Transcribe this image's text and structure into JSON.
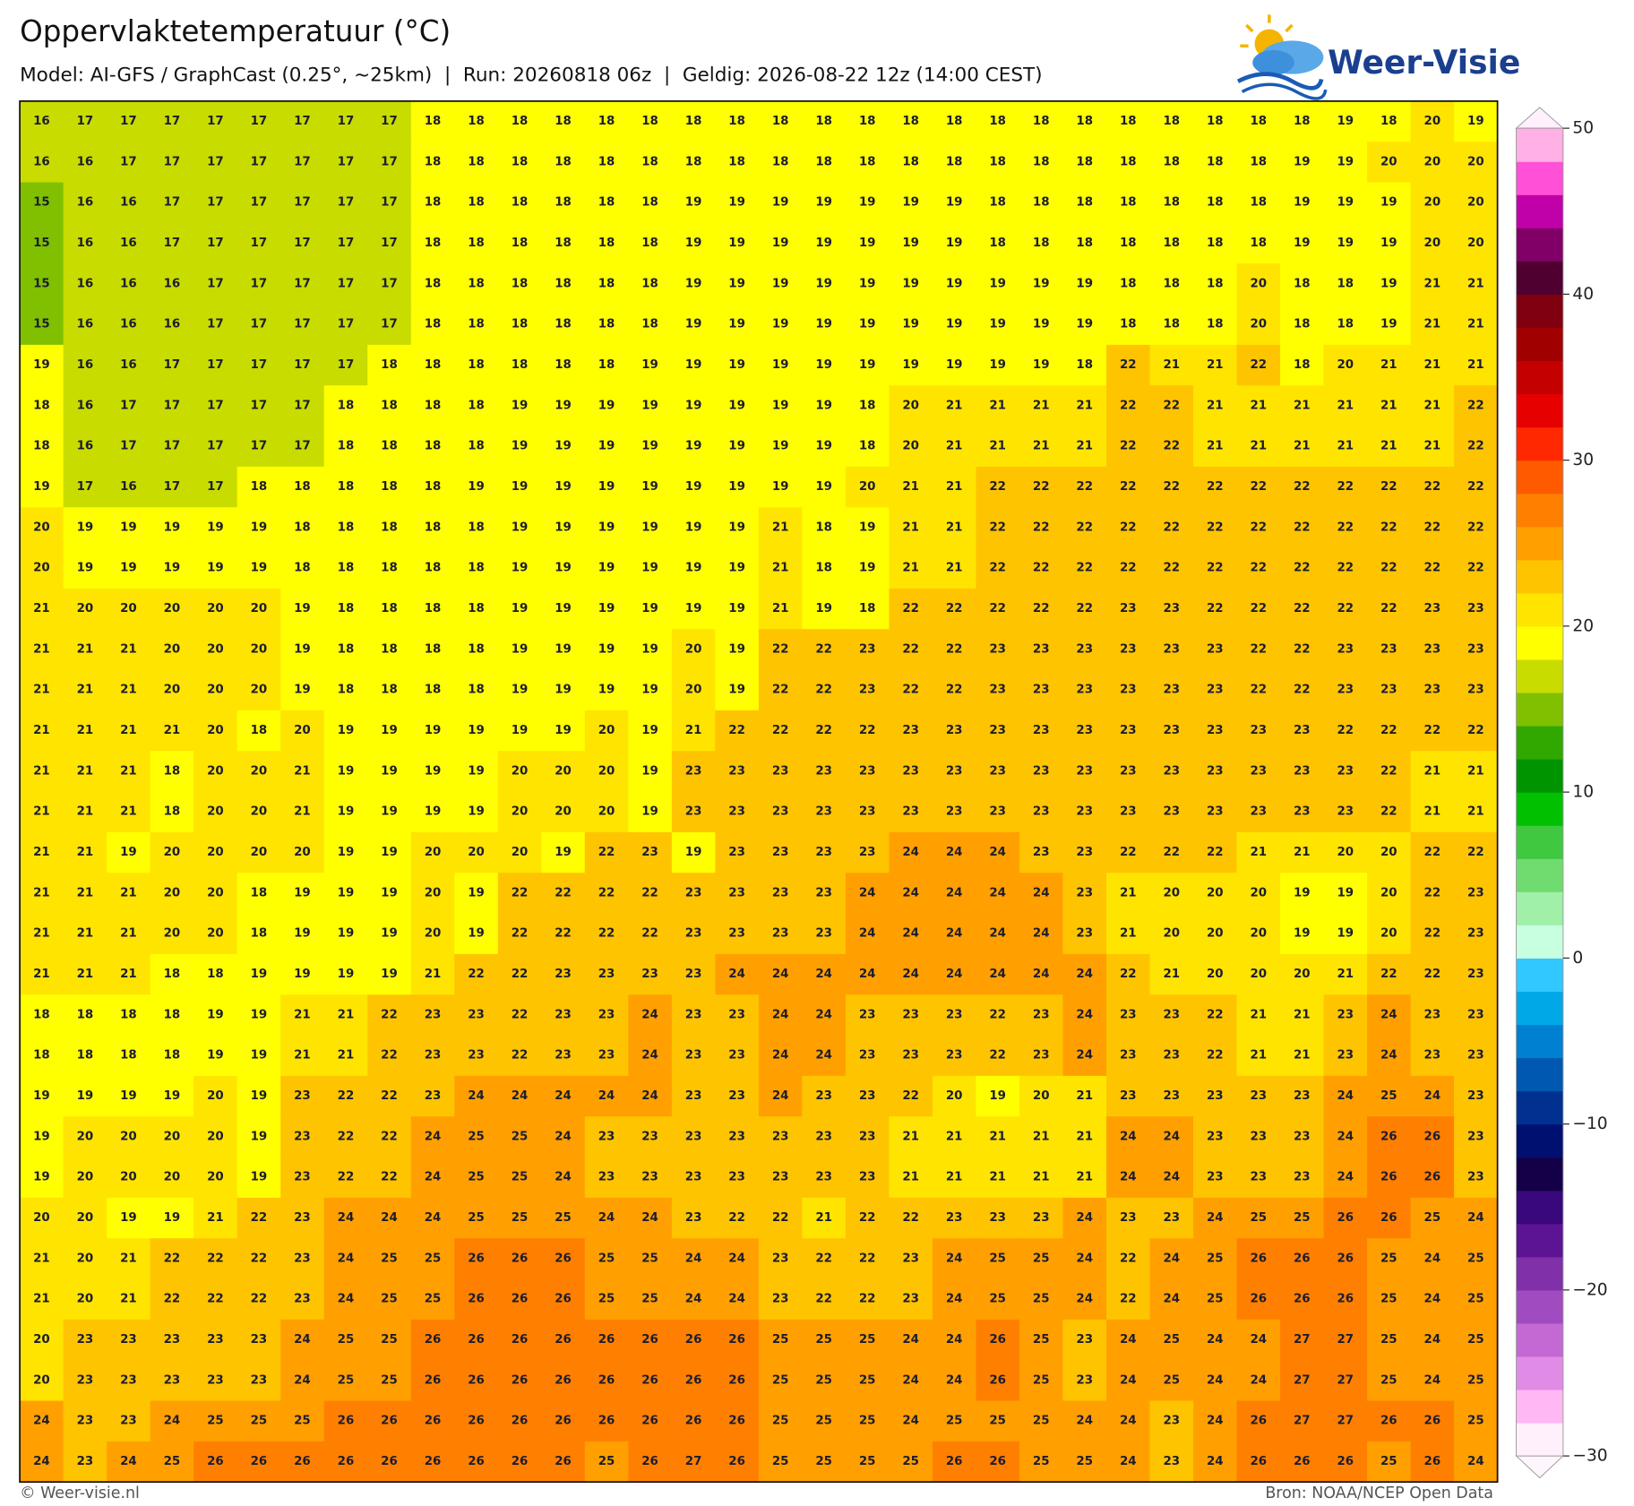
{
  "header": {
    "title": "Oppervlaktetemperatuur (°C)",
    "subtitle": "Model: AI-GFS / GraphCast (0.25°, ~25km)  |  Run: 20260818 06z  |  Geldig: 2026-08-22 12z (14:00 CEST)"
  },
  "logo": {
    "text": "Weer-Visie"
  },
  "map": {
    "rows": [
      [
        16,
        17,
        17,
        17,
        17,
        17,
        17,
        17,
        17,
        18,
        18,
        18,
        18,
        18,
        18,
        18,
        18,
        18,
        18,
        18,
        18,
        18,
        18,
        18,
        18,
        18,
        18,
        18,
        18,
        18,
        19,
        18,
        20,
        19
      ],
      [
        16,
        16,
        17,
        17,
        17,
        17,
        17,
        17,
        17,
        18,
        18,
        18,
        18,
        18,
        18,
        18,
        18,
        18,
        18,
        18,
        18,
        18,
        18,
        18,
        18,
        18,
        18,
        18,
        18,
        19,
        19,
        20,
        20,
        20
      ],
      [
        15,
        16,
        16,
        17,
        17,
        17,
        17,
        17,
        17,
        18,
        18,
        18,
        18,
        18,
        18,
        19,
        19,
        19,
        19,
        19,
        19,
        19,
        18,
        18,
        18,
        18,
        18,
        18,
        18,
        19,
        19,
        19,
        20,
        20
      ],
      [
        15,
        16,
        16,
        17,
        17,
        17,
        17,
        17,
        17,
        18,
        18,
        18,
        18,
        18,
        18,
        19,
        19,
        19,
        19,
        19,
        19,
        19,
        18,
        18,
        18,
        18,
        18,
        18,
        18,
        19,
        19,
        19,
        20,
        20
      ],
      [
        15,
        16,
        16,
        16,
        17,
        17,
        17,
        17,
        17,
        18,
        18,
        18,
        18,
        18,
        18,
        19,
        19,
        19,
        19,
        19,
        19,
        19,
        19,
        19,
        19,
        18,
        18,
        18,
        20,
        18,
        18,
        19,
        21,
        21
      ],
      [
        15,
        16,
        16,
        16,
        17,
        17,
        17,
        17,
        17,
        18,
        18,
        18,
        18,
        18,
        18,
        19,
        19,
        19,
        19,
        19,
        19,
        19,
        19,
        19,
        19,
        18,
        18,
        18,
        20,
        18,
        18,
        19,
        21,
        21
      ],
      [
        19,
        16,
        16,
        17,
        17,
        17,
        17,
        17,
        18,
        18,
        18,
        18,
        18,
        18,
        19,
        19,
        19,
        19,
        19,
        19,
        19,
        19,
        19,
        19,
        18,
        22,
        21,
        21,
        22,
        18,
        20,
        21,
        21,
        21
      ],
      [
        18,
        16,
        17,
        17,
        17,
        17,
        17,
        18,
        18,
        18,
        18,
        19,
        19,
        19,
        19,
        19,
        19,
        19,
        19,
        18,
        20,
        21,
        21,
        21,
        21,
        22,
        22,
        21,
        21,
        21,
        21,
        21,
        21,
        22
      ],
      [
        18,
        16,
        17,
        17,
        17,
        17,
        17,
        18,
        18,
        18,
        18,
        19,
        19,
        19,
        19,
        19,
        19,
        19,
        19,
        18,
        20,
        21,
        21,
        21,
        21,
        22,
        22,
        21,
        21,
        21,
        21,
        21,
        21,
        22
      ],
      [
        19,
        17,
        16,
        17,
        17,
        18,
        18,
        18,
        18,
        18,
        19,
        19,
        19,
        19,
        19,
        19,
        19,
        19,
        19,
        20,
        21,
        21,
        22,
        22,
        22,
        22,
        22,
        22,
        22,
        22,
        22,
        22,
        22,
        22
      ],
      [
        20,
        19,
        19,
        19,
        19,
        19,
        18,
        18,
        18,
        18,
        18,
        19,
        19,
        19,
        19,
        19,
        19,
        21,
        18,
        19,
        21,
        21,
        22,
        22,
        22,
        22,
        22,
        22,
        22,
        22,
        22,
        22,
        22,
        22
      ],
      [
        20,
        19,
        19,
        19,
        19,
        19,
        18,
        18,
        18,
        18,
        18,
        19,
        19,
        19,
        19,
        19,
        19,
        21,
        18,
        19,
        21,
        21,
        22,
        22,
        22,
        22,
        22,
        22,
        22,
        22,
        22,
        22,
        22,
        22
      ],
      [
        21,
        20,
        20,
        20,
        20,
        20,
        19,
        18,
        18,
        18,
        18,
        19,
        19,
        19,
        19,
        19,
        19,
        21,
        19,
        18,
        22,
        22,
        22,
        22,
        22,
        23,
        23,
        22,
        22,
        22,
        22,
        22,
        23,
        23
      ],
      [
        21,
        21,
        21,
        20,
        20,
        20,
        19,
        18,
        18,
        18,
        18,
        19,
        19,
        19,
        19,
        20,
        19,
        22,
        22,
        23,
        22,
        22,
        23,
        23,
        23,
        23,
        23,
        23,
        22,
        22,
        23,
        23,
        23,
        23
      ],
      [
        21,
        21,
        21,
        20,
        20,
        20,
        19,
        18,
        18,
        18,
        18,
        19,
        19,
        19,
        19,
        20,
        19,
        22,
        22,
        23,
        22,
        22,
        23,
        23,
        23,
        23,
        23,
        23,
        22,
        22,
        23,
        23,
        23,
        23
      ],
      [
        21,
        21,
        21,
        21,
        20,
        18,
        20,
        19,
        19,
        19,
        19,
        19,
        19,
        20,
        19,
        21,
        22,
        22,
        22,
        22,
        23,
        23,
        23,
        23,
        23,
        23,
        23,
        23,
        23,
        23,
        22,
        22,
        22,
        22
      ],
      [
        21,
        21,
        21,
        18,
        20,
        20,
        21,
        19,
        19,
        19,
        19,
        20,
        20,
        20,
        19,
        23,
        23,
        23,
        23,
        23,
        23,
        23,
        23,
        23,
        23,
        23,
        23,
        23,
        23,
        23,
        23,
        22,
        21,
        21
      ],
      [
        21,
        21,
        21,
        18,
        20,
        20,
        21,
        19,
        19,
        19,
        19,
        20,
        20,
        20,
        19,
        23,
        23,
        23,
        23,
        23,
        23,
        23,
        23,
        23,
        23,
        23,
        23,
        23,
        23,
        23,
        23,
        22,
        21,
        21
      ],
      [
        21,
        21,
        19,
        20,
        20,
        20,
        20,
        19,
        19,
        20,
        20,
        20,
        19,
        22,
        23,
        19,
        23,
        23,
        23,
        23,
        24,
        24,
        24,
        23,
        23,
        22,
        22,
        22,
        21,
        21,
        20,
        20,
        22,
        22
      ],
      [
        21,
        21,
        21,
        20,
        20,
        18,
        19,
        19,
        19,
        20,
        19,
        22,
        22,
        22,
        22,
        23,
        23,
        23,
        23,
        24,
        24,
        24,
        24,
        24,
        23,
        21,
        20,
        20,
        20,
        19,
        19,
        20,
        22,
        23
      ],
      [
        21,
        21,
        21,
        20,
        20,
        18,
        19,
        19,
        19,
        20,
        19,
        22,
        22,
        22,
        22,
        23,
        23,
        23,
        23,
        24,
        24,
        24,
        24,
        24,
        23,
        21,
        20,
        20,
        20,
        19,
        19,
        20,
        22,
        23
      ],
      [
        21,
        21,
        21,
        18,
        18,
        19,
        19,
        19,
        19,
        21,
        22,
        22,
        23,
        23,
        23,
        23,
        24,
        24,
        24,
        24,
        24,
        24,
        24,
        24,
        24,
        22,
        21,
        20,
        20,
        20,
        21,
        22,
        22,
        23
      ],
      [
        18,
        18,
        18,
        18,
        19,
        19,
        21,
        21,
        22,
        23,
        23,
        22,
        23,
        23,
        24,
        23,
        23,
        24,
        24,
        23,
        23,
        23,
        22,
        23,
        24,
        23,
        23,
        22,
        21,
        21,
        23,
        24,
        23,
        23
      ],
      [
        18,
        18,
        18,
        18,
        19,
        19,
        21,
        21,
        22,
        23,
        23,
        22,
        23,
        23,
        24,
        23,
        23,
        24,
        24,
        23,
        23,
        23,
        22,
        23,
        24,
        23,
        23,
        22,
        21,
        21,
        23,
        24,
        23,
        23
      ],
      [
        19,
        19,
        19,
        19,
        20,
        19,
        23,
        22,
        22,
        23,
        24,
        24,
        24,
        24,
        24,
        23,
        23,
        24,
        23,
        23,
        22,
        20,
        19,
        20,
        21,
        23,
        23,
        23,
        23,
        23,
        24,
        25,
        24,
        23
      ],
      [
        19,
        20,
        20,
        20,
        20,
        19,
        23,
        22,
        22,
        24,
        25,
        25,
        24,
        23,
        23,
        23,
        23,
        23,
        23,
        23,
        21,
        21,
        21,
        21,
        21,
        24,
        24,
        23,
        23,
        23,
        24,
        26,
        26,
        23
      ],
      [
        19,
        20,
        20,
        20,
        20,
        19,
        23,
        22,
        22,
        24,
        25,
        25,
        24,
        23,
        23,
        23,
        23,
        23,
        23,
        23,
        21,
        21,
        21,
        21,
        21,
        24,
        24,
        23,
        23,
        23,
        24,
        26,
        26,
        23
      ],
      [
        20,
        20,
        19,
        19,
        21,
        22,
        23,
        24,
        24,
        24,
        25,
        25,
        25,
        24,
        24,
        23,
        22,
        22,
        21,
        22,
        22,
        23,
        23,
        23,
        24,
        23,
        23,
        24,
        25,
        25,
        26,
        26,
        25,
        24
      ],
      [
        21,
        20,
        21,
        22,
        22,
        22,
        23,
        24,
        25,
        25,
        26,
        26,
        26,
        25,
        25,
        24,
        24,
        23,
        22,
        22,
        23,
        24,
        25,
        25,
        24,
        22,
        24,
        25,
        26,
        26,
        26,
        25,
        24,
        25
      ],
      [
        21,
        20,
        21,
        22,
        22,
        22,
        23,
        24,
        25,
        25,
        26,
        26,
        26,
        25,
        25,
        24,
        24,
        23,
        22,
        22,
        23,
        24,
        25,
        25,
        24,
        22,
        24,
        25,
        26,
        26,
        26,
        25,
        24,
        25
      ],
      [
        20,
        23,
        23,
        23,
        23,
        23,
        24,
        25,
        25,
        26,
        26,
        26,
        26,
        26,
        26,
        26,
        26,
        25,
        25,
        25,
        24,
        24,
        26,
        25,
        23,
        24,
        25,
        24,
        24,
        27,
        27,
        25,
        24,
        25
      ],
      [
        20,
        23,
        23,
        23,
        23,
        23,
        24,
        25,
        25,
        26,
        26,
        26,
        26,
        26,
        26,
        26,
        26,
        25,
        25,
        25,
        24,
        24,
        26,
        25,
        23,
        24,
        25,
        24,
        24,
        27,
        27,
        25,
        24,
        25
      ],
      [
        24,
        23,
        23,
        24,
        25,
        25,
        25,
        26,
        26,
        26,
        26,
        26,
        26,
        26,
        26,
        26,
        26,
        25,
        25,
        25,
        24,
        25,
        25,
        25,
        24,
        24,
        23,
        24,
        26,
        27,
        27,
        26,
        26,
        25
      ],
      [
        24,
        23,
        24,
        25,
        26,
        26,
        26,
        26,
        26,
        26,
        26,
        26,
        26,
        25,
        26,
        27,
        26,
        25,
        25,
        25,
        25,
        26,
        26,
        25,
        25,
        24,
        23,
        24,
        26,
        26,
        26,
        25,
        26,
        24
      ]
    ]
  },
  "colorbar": {
    "range": [
      -30,
      50
    ],
    "ticks": [
      50,
      40,
      30,
      20,
      10,
      0,
      {
        "value": -10,
        "label": "−10"
      },
      {
        "value": -20,
        "label": "−20"
      },
      {
        "value": -30,
        "label": "−30"
      }
    ],
    "colors": [
      "#fff0fc",
      "#ffb8f4",
      "#e08ce6",
      "#c468d4",
      "#a04cc0",
      "#8030a8",
      "#5c1494",
      "#38087c",
      "#140048",
      "#001070",
      "#003090",
      "#0058b0",
      "#0080d0",
      "#00a8e8",
      "#30c8ff",
      "#c8ffe0",
      "#a0f0a8",
      "#70dc70",
      "#40c840",
      "#00c000",
      "#009400",
      "#30a800",
      "#80c000",
      "#c8dc00",
      "#ffff00",
      "#ffe400",
      "#ffc400",
      "#ffa000",
      "#ff8000",
      "#ff5a00",
      "#ff2800",
      "#e60000",
      "#c40000",
      "#a00000",
      "#800010",
      "#500030",
      "#800068",
      "#c000a8",
      "#ff50d8",
      "#ffb0e4"
    ]
  },
  "footer": {
    "left": "© Weer-visie.nl",
    "right": "Bron: NOAA/NCEP Open Data"
  }
}
